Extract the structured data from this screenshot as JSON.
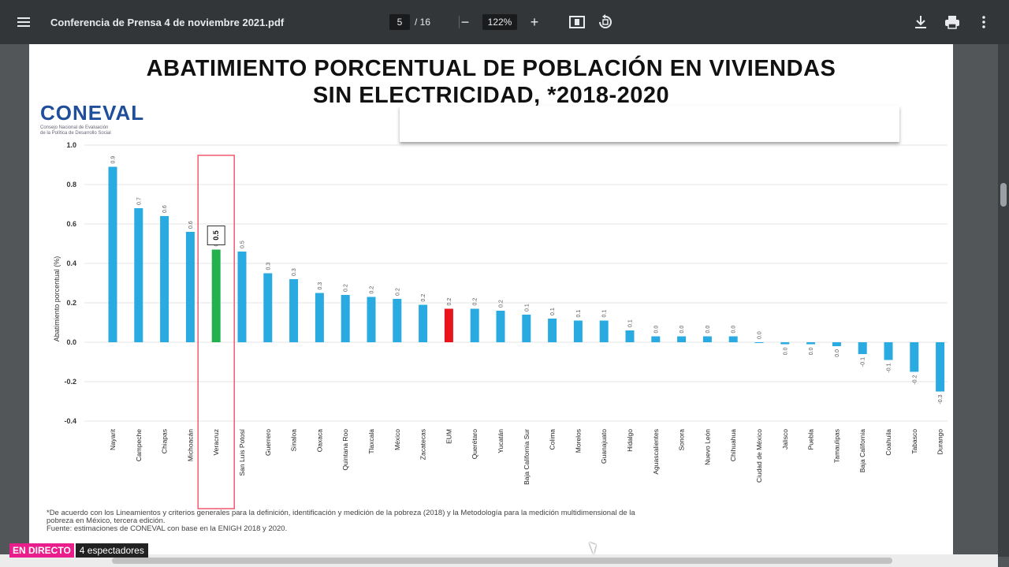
{
  "toolbar": {
    "menu_icon": "hamburger-menu-icon",
    "file_title": "Conferencia de Prensa 4 de noviembre 2021.pdf",
    "page_current": "5",
    "page_total": "/ 16",
    "zoom": "122%",
    "zoom_out": "−",
    "zoom_in": "+",
    "fit_icon": "fit-page-icon",
    "rotate_icon": "rotate-icon",
    "download_icon": "download-icon",
    "print_icon": "print-icon",
    "more_icon": "more-vert-icon"
  },
  "slide": {
    "title_line1": "ABATIMIENTO PORCENTUAL DE POBLACIÓN EN VIVIENDAS",
    "title_line2": "SIN ELECTRICIDAD, *2018-2020",
    "logo_text": "CONEVAL",
    "logo_sub1": "Consejo Nacional de Evaluación",
    "logo_sub2": "de la Política de Desarrollo Social",
    "footnote_line1": "*De acuerdo con los Lineamientos y criterios generales para la definición, identificación y medición de la pobreza (2018) y la Metodología para la medición multidimensional de la",
    "footnote_line2": "pobreza en México, tercera edición.",
    "footnote_line3": "Fuente: estimaciones de CONEVAL con base en la ENIGH 2018 y 2020."
  },
  "status": {
    "live_label": "EN DIRECTO",
    "viewers": "4 espectadores"
  },
  "colors": {
    "bar_default": "#29abe2",
    "bar_highlight": "#22b14c",
    "bar_national": "#e8141b",
    "highlight_box": "#f05a6e"
  },
  "chart_data": {
    "type": "bar",
    "ylabel": "Abatimiento porcentual (%)",
    "ylim": [
      -0.4,
      1.0
    ],
    "yticks": [
      "1.0",
      "0.8",
      "0.6",
      "0.4",
      "0.2",
      "0.0",
      "-0.2",
      "-0.4"
    ],
    "grid": true,
    "highlighted": "Veracruz",
    "highlight_label": "0.5",
    "categories": [
      "Nayarit",
      "Campeche",
      "Chiapas",
      "Michoacán",
      "Veracruz",
      "San Luis Potosí",
      "Guerrero",
      "Sinaloa",
      "Oaxaca",
      "Quintana Roo",
      "Tlaxcala",
      "México",
      "Zacatecas",
      "EUM",
      "Querétaro",
      "Yucatán",
      "Baja California Sur",
      "Colima",
      "Morelos",
      "Guanajuato",
      "Hidalgo",
      "Aguascalientes",
      "Sonora",
      "Nuevo León",
      "Chihuahua",
      "Ciudad de México",
      "Jalisco",
      "Puebla",
      "Tamaulipas",
      "Baja California",
      "Coahuila",
      "Tabasco",
      "Durango"
    ],
    "values": [
      0.89,
      0.68,
      0.64,
      0.56,
      0.47,
      0.46,
      0.35,
      0.32,
      0.25,
      0.24,
      0.23,
      0.22,
      0.19,
      0.17,
      0.17,
      0.16,
      0.14,
      0.12,
      0.11,
      0.11,
      0.06,
      0.03,
      0.03,
      0.03,
      0.03,
      0.0,
      -0.01,
      -0.01,
      -0.02,
      -0.06,
      -0.09,
      -0.15,
      -0.25
    ],
    "value_labels": [
      "0.9",
      "0.7",
      "0.6",
      "0.6",
      "0.5",
      "0.5",
      "0.3",
      "0.3",
      "0.3",
      "0.2",
      "0.2",
      "0.2",
      "0.2",
      "0.2",
      "0.2",
      "0.2",
      "0.1",
      "0.1",
      "0.1",
      "0.1",
      "0.1",
      "0.0",
      "0.0",
      "0.0",
      "0.0",
      "0.0",
      "0.0",
      "0.0",
      "0.0",
      "-0.1",
      "-0.1",
      "-0.2",
      "-0.3"
    ]
  }
}
